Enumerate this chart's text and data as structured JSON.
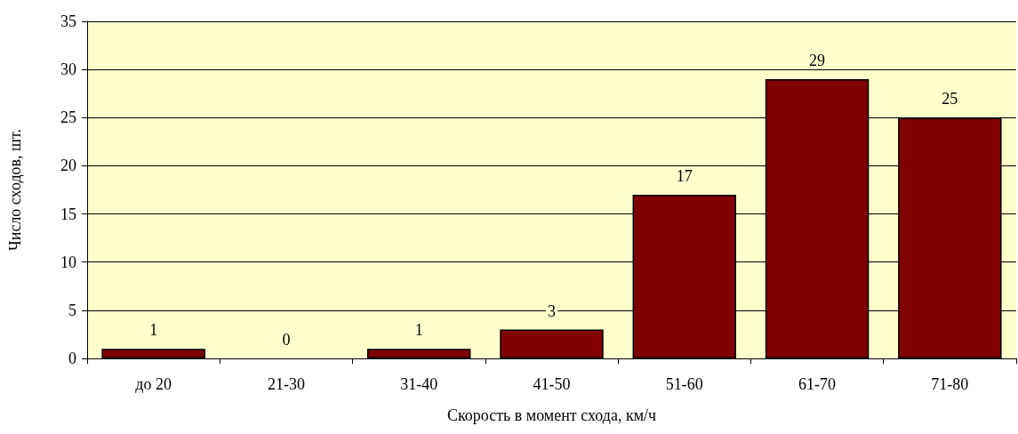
{
  "chart_data": {
    "type": "bar",
    "xlabel": "Скорость в момент схода, км/ч",
    "ylabel": "Число сходов, шт.",
    "categories": [
      "до 20",
      "21-30",
      "31-40",
      "41-50",
      "51-60",
      "61-70",
      "71-80"
    ],
    "values": [
      1,
      0,
      1,
      3,
      17,
      29,
      25
    ],
    "color": "#800000",
    "ylim": [
      0,
      35
    ],
    "yticks": [
      0,
      5,
      10,
      15,
      20,
      25,
      30,
      35
    ],
    "grid": "y",
    "data_labels": true
  }
}
